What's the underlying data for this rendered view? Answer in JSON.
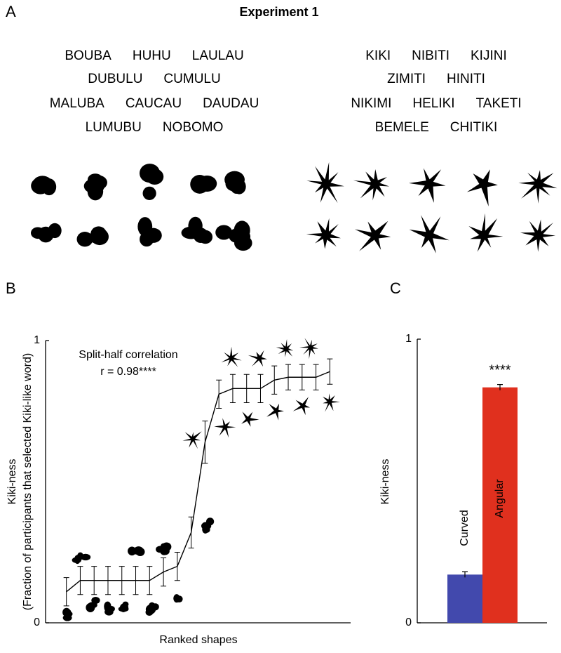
{
  "panel_labels": [
    "A",
    "B",
    "C"
  ],
  "panel_a": {
    "title": "Experiment 1",
    "round_words": [
      [
        "BOUBA",
        "HUHU",
        "LAULAU"
      ],
      [
        "DUBULU",
        "CUMULU"
      ],
      [
        "MALUBA",
        "CAUCAU",
        "DAUDAU"
      ],
      [
        "LUMUBU",
        "NOBOMO"
      ]
    ],
    "angular_words": [
      [
        "KIKI",
        "NIBITI",
        "KIJINI"
      ],
      [
        "ZIMITI",
        "HINITI"
      ],
      [
        "NIKIMI",
        "HELIKI",
        "TAKETI"
      ],
      [
        "BEMELE",
        "CHITIKI"
      ]
    ]
  },
  "chart_data": [
    {
      "type": "line",
      "xlabel": "Ranked shapes",
      "ylabel": "Kiki-ness",
      "ylabel_sub": "(Fraction of participants that selected Kiki-like word)",
      "annotations": [
        "Split-half correlation",
        "r = 0.98****"
      ],
      "x": [
        1,
        2,
        3,
        4,
        5,
        6,
        7,
        8,
        9,
        10,
        11,
        12,
        13,
        14,
        15,
        16,
        17,
        18,
        19,
        20
      ],
      "values": [
        0.11,
        0.15,
        0.15,
        0.15,
        0.15,
        0.15,
        0.15,
        0.18,
        0.2,
        0.32,
        0.64,
        0.81,
        0.83,
        0.83,
        0.83,
        0.86,
        0.87,
        0.87,
        0.87,
        0.89
      ],
      "errors": [
        0.05,
        0.05,
        0.05,
        0.05,
        0.05,
        0.05,
        0.05,
        0.05,
        0.05,
        0.055,
        0.075,
        0.05,
        0.05,
        0.05,
        0.05,
        0.05,
        0.045,
        0.045,
        0.045,
        0.045
      ],
      "color": "#000000",
      "xlim": [
        -0.5,
        21.5
      ],
      "ylim": [
        0,
        1
      ],
      "yticks": [
        0,
        1
      ]
    },
    {
      "type": "bar",
      "ylabel": "Kiki-ness",
      "annotations": [
        "****"
      ],
      "categories": [
        "Curved",
        "Angular"
      ],
      "values": [
        0.17,
        0.83
      ],
      "errors": [
        0.01,
        0.01
      ],
      "colors": [
        "#4249ad",
        "#e0301e"
      ],
      "ylim": [
        0,
        1
      ],
      "yticks": [
        0,
        1
      ]
    }
  ]
}
